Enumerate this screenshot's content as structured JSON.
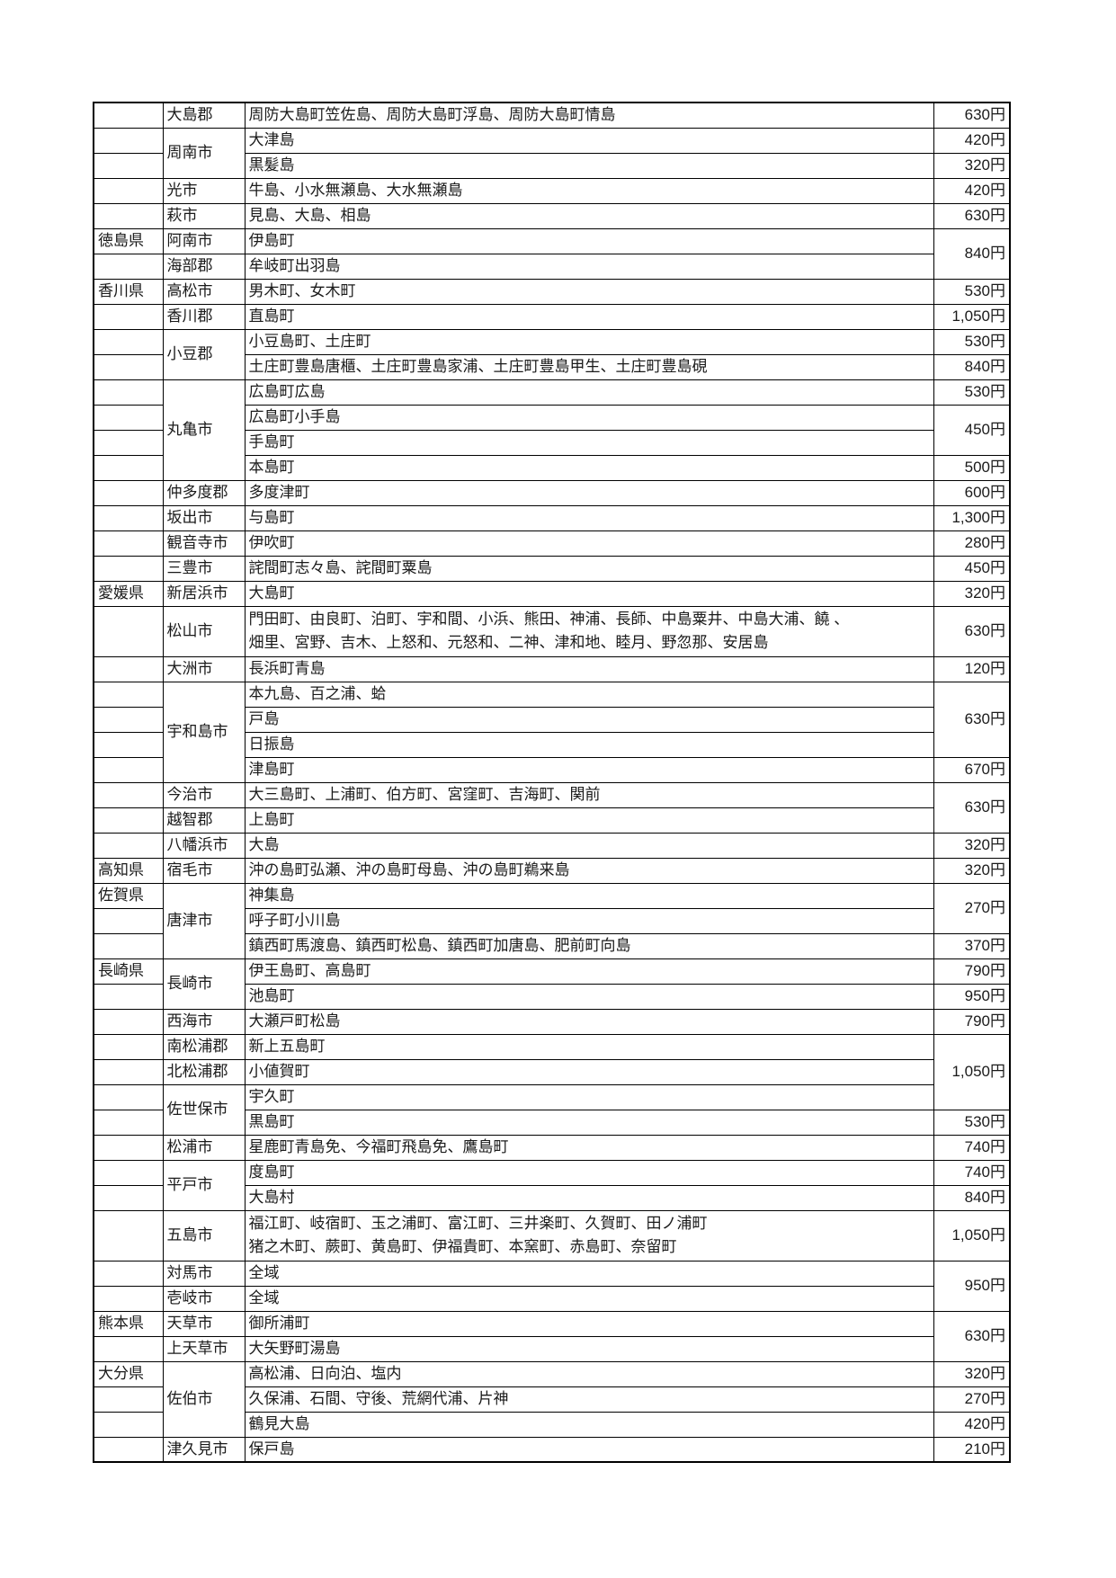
{
  "table": {
    "currency_suffix": "円",
    "columns": [
      "prefecture",
      "city",
      "islands",
      "fee"
    ],
    "rows": [
      {
        "cells": [
          {
            "col": "pref",
            "text": ""
          },
          {
            "col": "city",
            "text": "大島郡"
          },
          {
            "col": "islands",
            "text": "周防大島町笠佐島、周防大島町浮島、周防大島町情島"
          },
          {
            "col": "price",
            "text": "630円"
          }
        ]
      },
      {
        "cells": [
          {
            "col": "pref",
            "text": ""
          },
          {
            "col": "city",
            "text": "周南市",
            "rowspan": 2
          },
          {
            "col": "islands",
            "text": "大津島"
          },
          {
            "col": "price",
            "text": "420円"
          }
        ]
      },
      {
        "cells": [
          {
            "col": "pref",
            "text": ""
          },
          {
            "col": "islands",
            "text": "黒髪島"
          },
          {
            "col": "price",
            "text": "320円"
          }
        ]
      },
      {
        "cells": [
          {
            "col": "pref",
            "text": ""
          },
          {
            "col": "city",
            "text": "光市"
          },
          {
            "col": "islands",
            "text": "牛島、小水無瀬島、大水無瀬島"
          },
          {
            "col": "price",
            "text": "420円"
          }
        ]
      },
      {
        "cells": [
          {
            "col": "pref",
            "text": ""
          },
          {
            "col": "city",
            "text": "萩市"
          },
          {
            "col": "islands",
            "text": "見島、大島、相島"
          },
          {
            "col": "price",
            "text": "630円"
          }
        ]
      },
      {
        "cells": [
          {
            "col": "pref",
            "text": "徳島県"
          },
          {
            "col": "city",
            "text": "阿南市"
          },
          {
            "col": "islands",
            "text": "伊島町"
          },
          {
            "col": "price",
            "text": "840円",
            "rowspan": 2
          }
        ]
      },
      {
        "cells": [
          {
            "col": "pref",
            "text": ""
          },
          {
            "col": "city",
            "text": "海部郡"
          },
          {
            "col": "islands",
            "text": "牟岐町出羽島"
          }
        ]
      },
      {
        "cells": [
          {
            "col": "pref",
            "text": "香川県"
          },
          {
            "col": "city",
            "text": "高松市"
          },
          {
            "col": "islands",
            "text": "男木町、女木町"
          },
          {
            "col": "price",
            "text": "530円"
          }
        ]
      },
      {
        "cells": [
          {
            "col": "pref",
            "text": ""
          },
          {
            "col": "city",
            "text": "香川郡"
          },
          {
            "col": "islands",
            "text": "直島町"
          },
          {
            "col": "price",
            "text": "1,050円"
          }
        ]
      },
      {
        "cells": [
          {
            "col": "pref",
            "text": ""
          },
          {
            "col": "city",
            "text": "小豆郡",
            "rowspan": 2
          },
          {
            "col": "islands",
            "text": "小豆島町、土庄町"
          },
          {
            "col": "price",
            "text": "530円"
          }
        ]
      },
      {
        "cells": [
          {
            "col": "pref",
            "text": ""
          },
          {
            "col": "islands",
            "text": "土庄町豊島唐櫃、土庄町豊島家浦、土庄町豊島甲生、土庄町豊島硯"
          },
          {
            "col": "price",
            "text": "840円"
          }
        ]
      },
      {
        "cells": [
          {
            "col": "pref",
            "text": ""
          },
          {
            "col": "city",
            "text": "丸亀市",
            "rowspan": 4
          },
          {
            "col": "islands",
            "text": "広島町広島"
          },
          {
            "col": "price",
            "text": "530円"
          }
        ]
      },
      {
        "cells": [
          {
            "col": "pref",
            "text": ""
          },
          {
            "col": "islands",
            "text": "広島町小手島"
          },
          {
            "col": "price",
            "text": "450円",
            "rowspan": 2
          }
        ]
      },
      {
        "cells": [
          {
            "col": "pref",
            "text": ""
          },
          {
            "col": "islands",
            "text": "手島町"
          }
        ]
      },
      {
        "cells": [
          {
            "col": "pref",
            "text": ""
          },
          {
            "col": "islands",
            "text": "本島町"
          },
          {
            "col": "price",
            "text": "500円"
          }
        ]
      },
      {
        "cells": [
          {
            "col": "pref",
            "text": ""
          },
          {
            "col": "city",
            "text": "仲多度郡"
          },
          {
            "col": "islands",
            "text": "多度津町"
          },
          {
            "col": "price",
            "text": "600円"
          }
        ]
      },
      {
        "cells": [
          {
            "col": "pref",
            "text": ""
          },
          {
            "col": "city",
            "text": "坂出市"
          },
          {
            "col": "islands",
            "text": "与島町"
          },
          {
            "col": "price",
            "text": "1,300円"
          }
        ]
      },
      {
        "cells": [
          {
            "col": "pref",
            "text": ""
          },
          {
            "col": "city",
            "text": "観音寺市"
          },
          {
            "col": "islands",
            "text": "伊吹町"
          },
          {
            "col": "price",
            "text": "280円"
          }
        ]
      },
      {
        "cells": [
          {
            "col": "pref",
            "text": ""
          },
          {
            "col": "city",
            "text": "三豊市"
          },
          {
            "col": "islands",
            "text": "詫間町志々島、詫間町粟島"
          },
          {
            "col": "price",
            "text": "450円"
          }
        ]
      },
      {
        "cells": [
          {
            "col": "pref",
            "text": "愛媛県"
          },
          {
            "col": "city",
            "text": "新居浜市"
          },
          {
            "col": "islands",
            "text": "大島町"
          },
          {
            "col": "price",
            "text": "320円"
          }
        ]
      },
      {
        "tall": true,
        "cells": [
          {
            "col": "pref",
            "text": ""
          },
          {
            "col": "city",
            "text": "松山市"
          },
          {
            "col": "islands",
            "text": "門田町、由良町、泊町、宇和間、小浜、熊田、神浦、長師、中島粟井、中島大浦、饒 、\n畑里、宮野、吉木、上怒和、元怒和、二神、津和地、睦月、野忽那、安居島"
          },
          {
            "col": "price",
            "text": "630円"
          }
        ]
      },
      {
        "cells": [
          {
            "col": "pref",
            "text": ""
          },
          {
            "col": "city",
            "text": "大洲市"
          },
          {
            "col": "islands",
            "text": "長浜町青島"
          },
          {
            "col": "price",
            "text": "120円"
          }
        ]
      },
      {
        "cells": [
          {
            "col": "pref",
            "text": ""
          },
          {
            "col": "city",
            "text": "宇和島市",
            "rowspan": 4
          },
          {
            "col": "islands",
            "text": "本九島、百之浦、蛤"
          },
          {
            "col": "price",
            "text": "630円",
            "rowspan": 3
          }
        ]
      },
      {
        "cells": [
          {
            "col": "pref",
            "text": ""
          },
          {
            "col": "islands",
            "text": "戸島"
          }
        ]
      },
      {
        "cells": [
          {
            "col": "pref",
            "text": ""
          },
          {
            "col": "islands",
            "text": "日振島"
          }
        ]
      },
      {
        "cells": [
          {
            "col": "pref",
            "text": ""
          },
          {
            "col": "islands",
            "text": "津島町"
          },
          {
            "col": "price",
            "text": "670円"
          }
        ]
      },
      {
        "cells": [
          {
            "col": "pref",
            "text": ""
          },
          {
            "col": "city",
            "text": "今治市"
          },
          {
            "col": "islands",
            "text": "大三島町、上浦町、伯方町、宮窪町、吉海町、関前"
          },
          {
            "col": "price",
            "text": "630円",
            "rowspan": 2
          }
        ]
      },
      {
        "cells": [
          {
            "col": "pref",
            "text": ""
          },
          {
            "col": "city",
            "text": "越智郡"
          },
          {
            "col": "islands",
            "text": "上島町"
          }
        ]
      },
      {
        "cells": [
          {
            "col": "pref",
            "text": ""
          },
          {
            "col": "city",
            "text": "八幡浜市"
          },
          {
            "col": "islands",
            "text": "大島"
          },
          {
            "col": "price",
            "text": "320円"
          }
        ]
      },
      {
        "cells": [
          {
            "col": "pref",
            "text": "高知県"
          },
          {
            "col": "city",
            "text": "宿毛市"
          },
          {
            "col": "islands",
            "text": "沖の島町弘瀬、沖の島町母島、沖の島町鵜来島"
          },
          {
            "col": "price",
            "text": "320円"
          }
        ]
      },
      {
        "cells": [
          {
            "col": "pref",
            "text": "佐賀県"
          },
          {
            "col": "city",
            "text": "唐津市",
            "rowspan": 3
          },
          {
            "col": "islands",
            "text": "神集島"
          },
          {
            "col": "price",
            "text": "270円",
            "rowspan": 2
          }
        ]
      },
      {
        "cells": [
          {
            "col": "pref",
            "text": ""
          },
          {
            "col": "islands",
            "text": "呼子町小川島"
          }
        ]
      },
      {
        "cells": [
          {
            "col": "pref",
            "text": ""
          },
          {
            "col": "islands",
            "text": "鎮西町馬渡島、鎮西町松島、鎮西町加唐島、肥前町向島"
          },
          {
            "col": "price",
            "text": "370円"
          }
        ]
      },
      {
        "cells": [
          {
            "col": "pref",
            "text": "長崎県"
          },
          {
            "col": "city",
            "text": "長崎市",
            "rowspan": 2
          },
          {
            "col": "islands",
            "text": "伊王島町、高島町"
          },
          {
            "col": "price",
            "text": "790円"
          }
        ]
      },
      {
        "cells": [
          {
            "col": "pref",
            "text": ""
          },
          {
            "col": "islands",
            "text": "池島町"
          },
          {
            "col": "price",
            "text": "950円"
          }
        ]
      },
      {
        "cells": [
          {
            "col": "pref",
            "text": ""
          },
          {
            "col": "city",
            "text": "西海市"
          },
          {
            "col": "islands",
            "text": "大瀬戸町松島"
          },
          {
            "col": "price",
            "text": "790円"
          }
        ]
      },
      {
        "cells": [
          {
            "col": "pref",
            "text": ""
          },
          {
            "col": "city",
            "text": "南松浦郡"
          },
          {
            "col": "islands",
            "text": "新上五島町"
          },
          {
            "col": "price",
            "text": "1,050円",
            "rowspan": 3
          }
        ]
      },
      {
        "cells": [
          {
            "col": "pref",
            "text": ""
          },
          {
            "col": "city",
            "text": "北松浦郡"
          },
          {
            "col": "islands",
            "text": "小値賀町"
          }
        ]
      },
      {
        "cells": [
          {
            "col": "pref",
            "text": ""
          },
          {
            "col": "city",
            "text": "佐世保市",
            "rowspan": 2
          },
          {
            "col": "islands",
            "text": "宇久町"
          }
        ]
      },
      {
        "cells": [
          {
            "col": "pref",
            "text": ""
          },
          {
            "col": "islands",
            "text": "黒島町"
          },
          {
            "col": "price",
            "text": "530円"
          }
        ]
      },
      {
        "cells": [
          {
            "col": "pref",
            "text": ""
          },
          {
            "col": "city",
            "text": "松浦市"
          },
          {
            "col": "islands",
            "text": "星鹿町青島免、今福町飛島免、鷹島町"
          },
          {
            "col": "price",
            "text": "740円"
          }
        ]
      },
      {
        "cells": [
          {
            "col": "pref",
            "text": ""
          },
          {
            "col": "city",
            "text": "平戸市",
            "rowspan": 2
          },
          {
            "col": "islands",
            "text": "度島町"
          },
          {
            "col": "price",
            "text": "740円"
          }
        ]
      },
      {
        "cells": [
          {
            "col": "pref",
            "text": ""
          },
          {
            "col": "islands",
            "text": "大島村"
          },
          {
            "col": "price",
            "text": "840円"
          }
        ]
      },
      {
        "tall": true,
        "cells": [
          {
            "col": "pref",
            "text": ""
          },
          {
            "col": "city",
            "text": "五島市"
          },
          {
            "col": "islands",
            "text": "福江町、岐宿町、玉之浦町、富江町、三井楽町、久賀町、田ノ浦町\n猪之木町、蕨町、黄島町、伊福貴町、本窯町、赤島町、奈留町"
          },
          {
            "col": "price",
            "text": "1,050円"
          }
        ]
      },
      {
        "cells": [
          {
            "col": "pref",
            "text": ""
          },
          {
            "col": "city",
            "text": "対馬市"
          },
          {
            "col": "islands",
            "text": "全域"
          },
          {
            "col": "price",
            "text": "950円",
            "rowspan": 2
          }
        ]
      },
      {
        "cells": [
          {
            "col": "pref",
            "text": ""
          },
          {
            "col": "city",
            "text": "壱岐市"
          },
          {
            "col": "islands",
            "text": "全域"
          }
        ]
      },
      {
        "cells": [
          {
            "col": "pref",
            "text": "熊本県"
          },
          {
            "col": "city",
            "text": "天草市"
          },
          {
            "col": "islands",
            "text": "御所浦町"
          },
          {
            "col": "price",
            "text": "630円",
            "rowspan": 2
          }
        ]
      },
      {
        "cells": [
          {
            "col": "pref",
            "text": ""
          },
          {
            "col": "city",
            "text": "上天草市"
          },
          {
            "col": "islands",
            "text": "大矢野町湯島"
          }
        ]
      },
      {
        "cells": [
          {
            "col": "pref",
            "text": "大分県"
          },
          {
            "col": "city",
            "text": "佐伯市",
            "rowspan": 3
          },
          {
            "col": "islands",
            "text": "高松浦、日向泊、塩内"
          },
          {
            "col": "price",
            "text": "320円"
          }
        ]
      },
      {
        "cells": [
          {
            "col": "pref",
            "text": ""
          },
          {
            "col": "islands",
            "text": "久保浦、石間、守後、荒網代浦、片神"
          },
          {
            "col": "price",
            "text": "270円"
          }
        ]
      },
      {
        "cells": [
          {
            "col": "pref",
            "text": ""
          },
          {
            "col": "islands",
            "text": "鶴見大島"
          },
          {
            "col": "price",
            "text": "420円"
          }
        ]
      },
      {
        "cells": [
          {
            "col": "pref",
            "text": ""
          },
          {
            "col": "city",
            "text": "津久見市"
          },
          {
            "col": "islands",
            "text": "保戸島"
          },
          {
            "col": "price",
            "text": "210円"
          }
        ]
      }
    ]
  }
}
